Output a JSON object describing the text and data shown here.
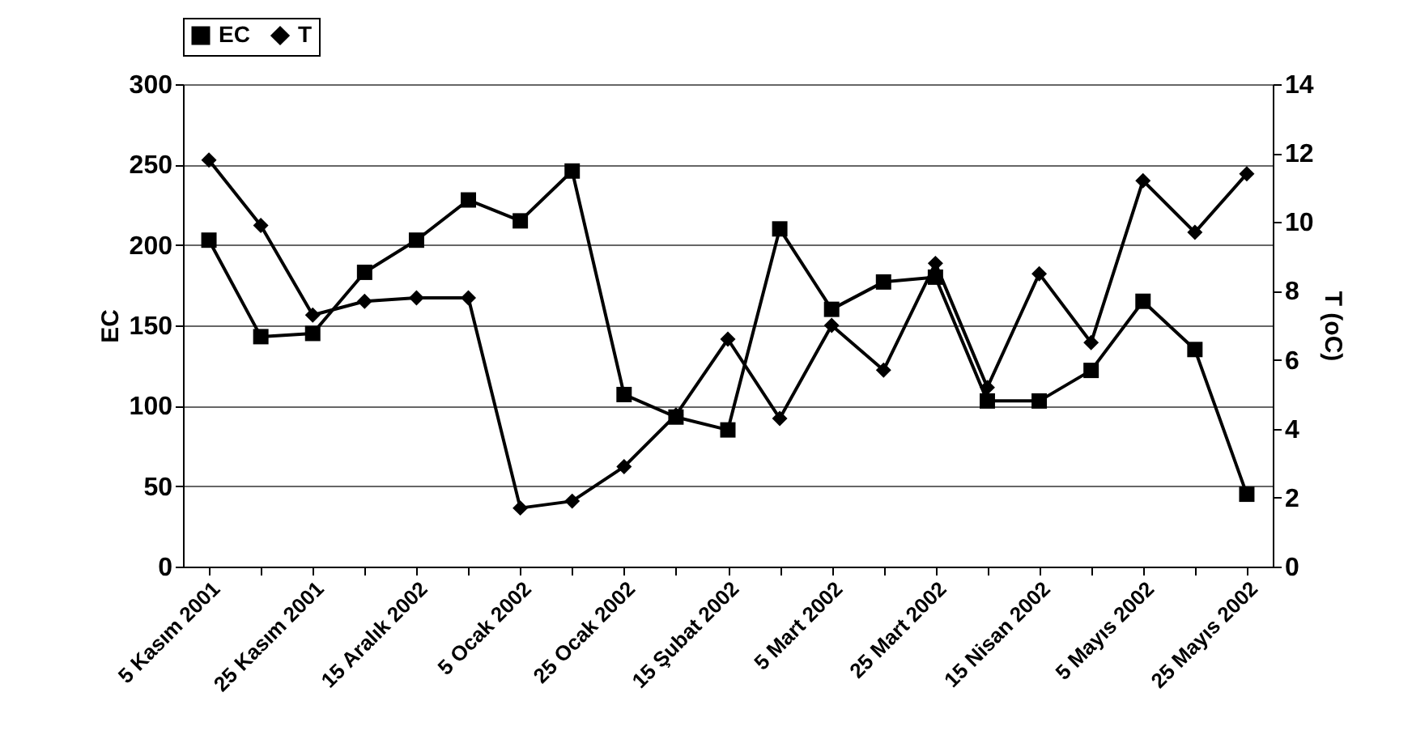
{
  "chart_data": {
    "type": "line",
    "categories": [
      "5 Kasım 2001",
      null,
      "25 Kasım 2001",
      null,
      "15 Aralık 2002",
      null,
      "5 Ocak 2002",
      null,
      "25 Ocak 2002",
      null,
      "15 Şubat 2002",
      null,
      "5 Mart 2002",
      null,
      "25 Mart 2002",
      null,
      "15 Nisan 2002",
      null,
      "5 Mayıs 2002",
      null,
      "25 Mayıs 2002"
    ],
    "series": [
      {
        "name": "EC",
        "color": "#000000",
        "marker": "square",
        "values": [
          203,
          143,
          145,
          183,
          203,
          228,
          215,
          246,
          107,
          93,
          85,
          210,
          160,
          177,
          180,
          103,
          103,
          122,
          165,
          135,
          45
        ]
      },
      {
        "name": "T",
        "color": "#000000",
        "marker": "diamond",
        "axis": "y2",
        "values": [
          11.8,
          9.9,
          7.3,
          7.7,
          7.8,
          7.8,
          1.7,
          1.9,
          2.9,
          4.4,
          6.6,
          4.3,
          7.0,
          5.7,
          8.8,
          5.2,
          8.5,
          6.5,
          11.2,
          9.7,
          11.4
        ]
      }
    ],
    "ylabel": "EC",
    "y2label": "T (oC)",
    "ylim": [
      0,
      300
    ],
    "yticks": [
      0,
      50,
      100,
      150,
      200,
      250,
      300
    ],
    "y2lim": [
      0,
      14
    ],
    "y2ticks": [
      0,
      2,
      4,
      6,
      8,
      10,
      12,
      14
    ],
    "grid": "y",
    "legend": "top",
    "line_style": "solid"
  }
}
